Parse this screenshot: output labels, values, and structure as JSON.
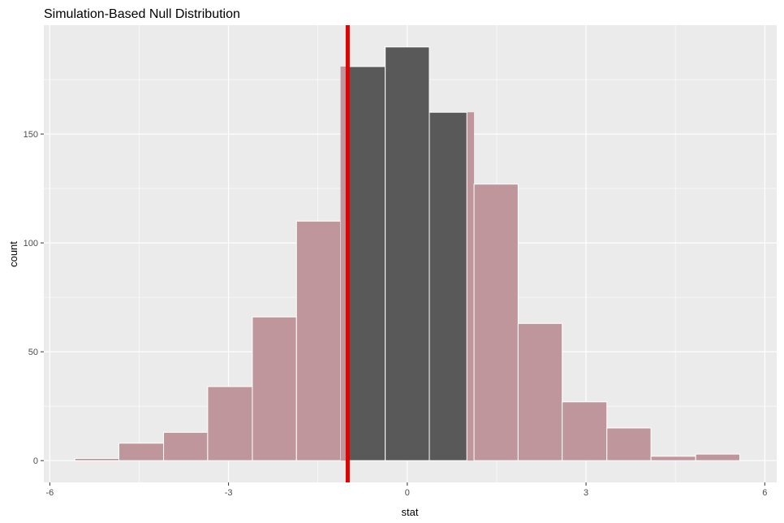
{
  "chart_data": {
    "type": "bar",
    "title": "Simulation-Based Null Distribution",
    "xlabel": "stat",
    "ylabel": "count",
    "xlim": [
      -6.1,
      6.2
    ],
    "ylim": [
      -10,
      200
    ],
    "x_ticks": [
      -6,
      -3,
      0,
      3,
      6
    ],
    "y_ticks": [
      0,
      50,
      100,
      150
    ],
    "grid": true,
    "observed_stat": -1.0,
    "bins": [
      {
        "x0": -5.58,
        "x1": -4.84,
        "count": 1,
        "shaded": false
      },
      {
        "x0": -4.84,
        "x1": -4.09,
        "count": 8,
        "shaded": false
      },
      {
        "x0": -4.09,
        "x1": -3.35,
        "count": 13,
        "shaded": false
      },
      {
        "x0": -3.35,
        "x1": -2.6,
        "count": 34,
        "shaded": false
      },
      {
        "x0": -2.6,
        "x1": -1.86,
        "count": 66,
        "shaded": false
      },
      {
        "x0": -1.86,
        "x1": -1.12,
        "count": 110,
        "shaded": false
      },
      {
        "x0": -1.12,
        "x1": -0.37,
        "count": 181,
        "shaded": "split"
      },
      {
        "x0": -0.37,
        "x1": 0.37,
        "count": 190,
        "shaded": true
      },
      {
        "x0": 0.37,
        "x1": 1.12,
        "count": 160,
        "shaded": "split"
      },
      {
        "x0": 1.12,
        "x1": 1.86,
        "count": 127,
        "shaded": false
      },
      {
        "x0": 1.86,
        "x1": 2.6,
        "count": 63,
        "shaded": false
      },
      {
        "x0": 2.6,
        "x1": 3.35,
        "count": 27,
        "shaded": false
      },
      {
        "x0": 3.35,
        "x1": 4.09,
        "count": 15,
        "shaded": false
      },
      {
        "x0": 4.09,
        "x1": 4.84,
        "count": 2,
        "shaded": false
      },
      {
        "x0": 4.84,
        "x1": 5.58,
        "count": 3,
        "shaded": false
      }
    ],
    "colors": {
      "panel_bg": "#ebebeb",
      "grid": "#ffffff",
      "bar_fill": "#595959",
      "shade_fill": "#bf969c",
      "bar_outline": "#ffffff",
      "observed_line": "#e00000",
      "tick": "#333333"
    }
  }
}
